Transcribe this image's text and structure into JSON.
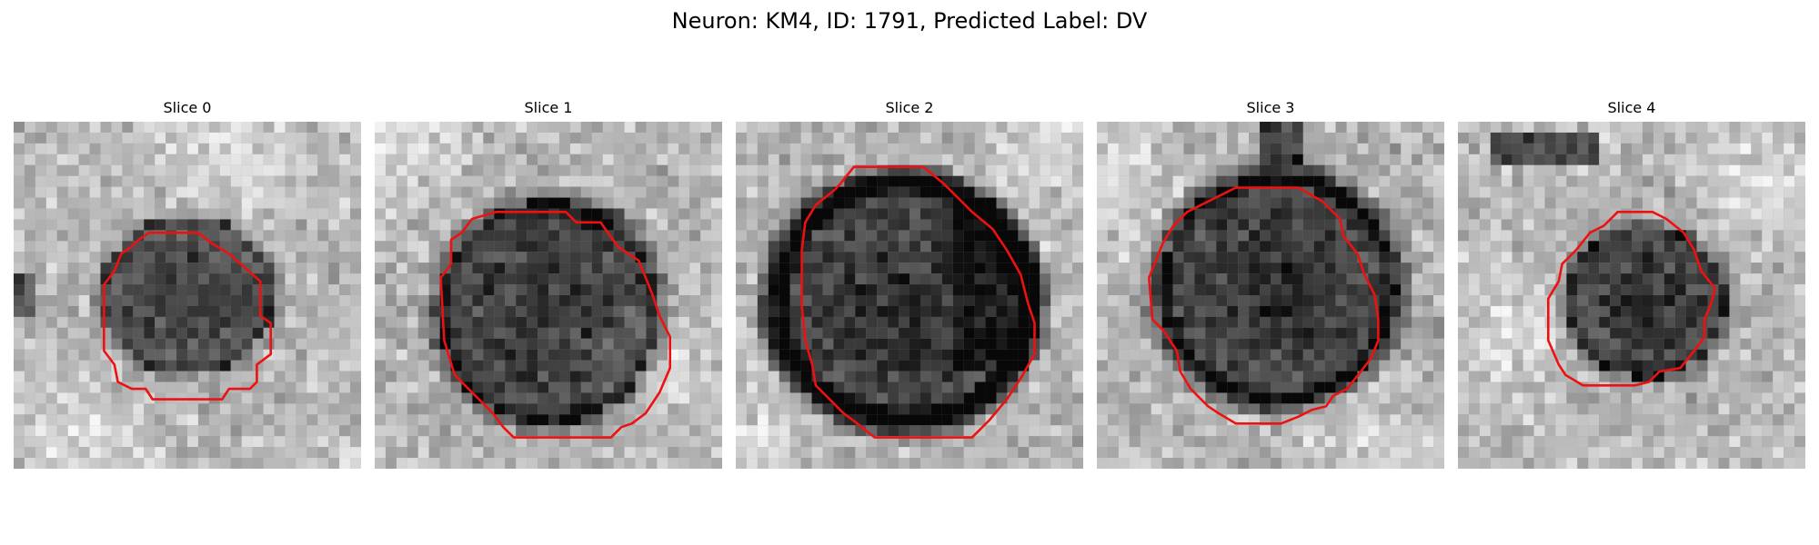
{
  "figure": {
    "title": "Neuron: KM4, ID: 1791, Predicted Label: DV"
  },
  "panels": [
    {
      "title": "Slice 0"
    },
    {
      "title": "Slice 1"
    },
    {
      "title": "Slice 2"
    },
    {
      "title": "Slice 3"
    },
    {
      "title": "Slice 4"
    }
  ],
  "colors": {
    "contour": "#ee1111",
    "background": "#ffffff"
  },
  "image_style": "grayscale pixelated micrograph"
}
